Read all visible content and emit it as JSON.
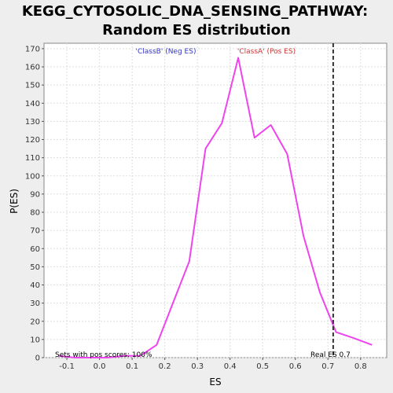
{
  "chart_data": {
    "type": "line",
    "title_line1": "KEGG_CYTOSOLIC_DNA_SENSING_PATHWAY:",
    "title_line2": "Random ES distribution",
    "xlabel": "ES",
    "ylabel": "P(ES)",
    "xlim": [
      -0.17,
      0.88
    ],
    "ylim": [
      0,
      173
    ],
    "x_ticks": [
      -0.1,
      0.0,
      0.1,
      0.2,
      0.3,
      0.4,
      0.5,
      0.6,
      0.7,
      0.8
    ],
    "x_tick_labels": [
      "-0.1",
      "0.0",
      "0.1",
      "0.2",
      "0.3",
      "0.4",
      "0.5",
      "0.6",
      "0.7",
      "0.8"
    ],
    "y_ticks": [
      0,
      10,
      20,
      30,
      40,
      50,
      60,
      70,
      80,
      90,
      100,
      110,
      120,
      130,
      140,
      150,
      160,
      170
    ],
    "y_tick_labels": [
      "0",
      "10",
      "20",
      "30",
      "40",
      "50",
      "60",
      "70",
      "80",
      "90",
      "100",
      "110",
      "120",
      "130",
      "140",
      "150",
      "160",
      "170"
    ],
    "grid": true,
    "series": [
      {
        "color": "#ee44ee",
        "x": [
          -0.125,
          -0.075,
          -0.025,
          0.025,
          0.075,
          0.125,
          0.175,
          0.225,
          0.275,
          0.325,
          0.375,
          0.425,
          0.475,
          0.525,
          0.575,
          0.625,
          0.675,
          0.725,
          0.775,
          0.835
        ],
        "values": [
          1,
          0,
          0,
          0,
          1,
          1,
          7,
          30,
          53,
          115,
          129,
          165,
          121,
          128,
          112,
          67,
          36,
          14,
          11,
          7
        ]
      }
    ],
    "real_es": 0.716,
    "annotations": {
      "neg_label": "'ClassB' (Neg ES)",
      "neg_color": "#3333cc",
      "pos_label": "'ClassA' (Pos ES)",
      "pos_color": "#cc3333",
      "pos_scores": "Sets with pos scores: 100%",
      "real_es_label": "Real ES 0.7"
    }
  }
}
